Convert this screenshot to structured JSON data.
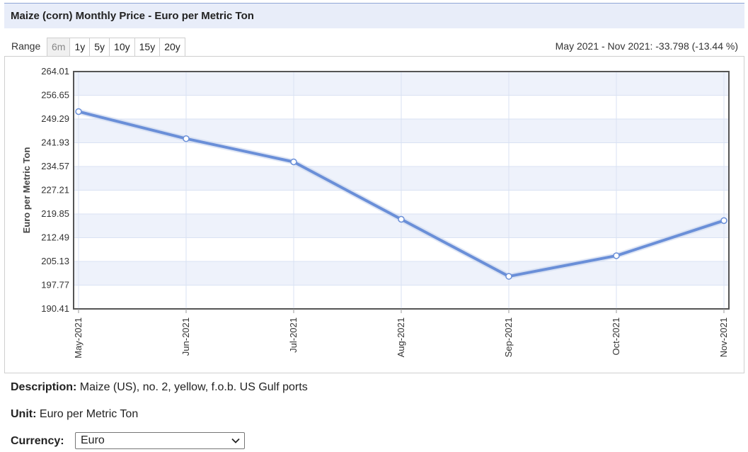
{
  "header": {
    "title": "Maize (corn) Monthly Price - Euro per Metric Ton"
  },
  "range": {
    "label": "Range",
    "options": [
      "6m",
      "1y",
      "5y",
      "10y",
      "15y",
      "20y"
    ],
    "active": "6m"
  },
  "change_summary": "May 2021 - Nov 2021: -33.798 (-13.44 %)",
  "colors": {
    "line": "#6a8fd8",
    "band": "#eef2fb",
    "grid": "#d9e2f3",
    "plot_border": "#555555",
    "title_bg": "#e8edf9"
  },
  "chart_data": {
    "type": "line",
    "title": "",
    "xlabel": "",
    "ylabel": "Euro per Metric Ton",
    "categories": [
      "May-2021",
      "Jun-2021",
      "Jul-2021",
      "Aug-2021",
      "Sep-2021",
      "Oct-2021",
      "Nov-2021"
    ],
    "series": [
      {
        "values": [
          251.6,
          243.2,
          236.0,
          218.2,
          200.5,
          206.9,
          217.8
        ]
      }
    ],
    "yticks": [
      "264.01",
      "256.65",
      "249.29",
      "241.93",
      "234.57",
      "227.21",
      "219.85",
      "212.49",
      "205.13",
      "197.77",
      "190.41"
    ],
    "ylim": [
      190.41,
      264.01
    ],
    "grid": true,
    "legend": "none"
  },
  "info": {
    "description_label": "Description:",
    "description_value": "Maize (US), no. 2, yellow, f.o.b. US Gulf ports",
    "unit_label": "Unit:",
    "unit_value": "Euro per Metric Ton",
    "currency_label": "Currency:",
    "currency_value": "Euro"
  }
}
